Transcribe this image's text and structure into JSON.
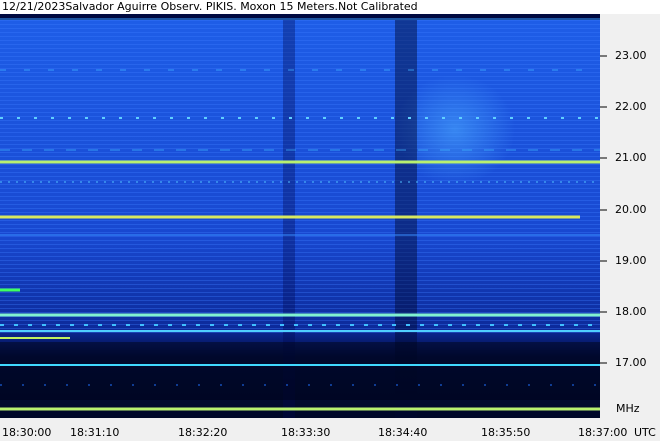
{
  "header": {
    "title": "12/21/2023Salvador Aguirre Observ. PIKIS. Moxon 15 Meters.Not Calibrated"
  },
  "y_axis": {
    "labels": [
      "23.00",
      "22.00",
      "21.00",
      "20.00",
      "19.00",
      "18.00",
      "17.00"
    ],
    "unit": "MHz"
  },
  "x_axis": {
    "labels": [
      "18:30:00",
      "18:31:10",
      "18:32:20",
      "18:33:30",
      "18:34:40",
      "18:35:50",
      "18:37:00"
    ],
    "unit": "UTC"
  }
}
